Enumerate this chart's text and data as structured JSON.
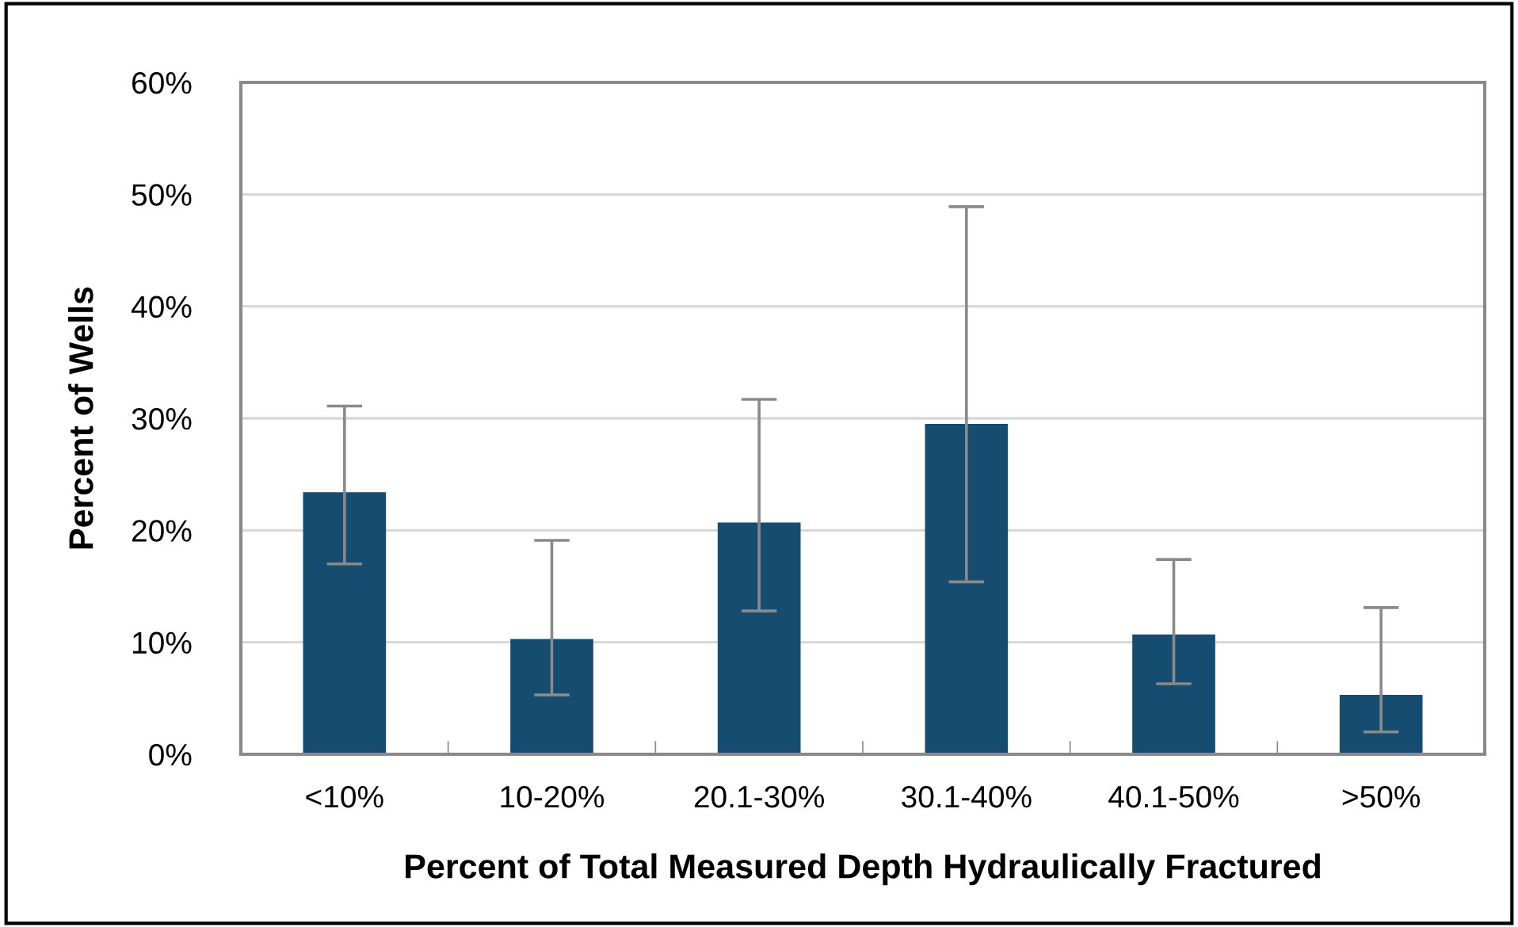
{
  "chart_data": {
    "type": "bar",
    "xlabel": "Percent of Total Measured Depth Hydraulically Fractured",
    "ylabel": "Percent of Wells",
    "categories": [
      "<10%",
      "10-20%",
      "20.1-30%",
      "30.1-40%",
      "40.1-50%",
      ">50%"
    ],
    "values": [
      23.4,
      10.3,
      20.7,
      29.5,
      10.7,
      5.3
    ],
    "errors": [
      [
        17.0,
        31.1
      ],
      [
        5.3,
        19.1
      ],
      [
        12.8,
        31.7
      ],
      [
        15.4,
        48.9
      ],
      [
        6.3,
        17.4
      ],
      [
        2.0,
        13.1
      ]
    ],
    "color": "#154c70",
    "ylim": [
      0,
      60
    ],
    "yticks": [
      {
        "value": 0,
        "label": "0%"
      },
      {
        "value": 10,
        "label": "10%"
      },
      {
        "value": 20,
        "label": "20%"
      },
      {
        "value": 30,
        "label": "30%"
      },
      {
        "value": 40,
        "label": "40%"
      },
      {
        "value": 50,
        "label": "50%"
      },
      {
        "value": 60,
        "label": "60%"
      }
    ],
    "grid": "y",
    "legend": false
  }
}
